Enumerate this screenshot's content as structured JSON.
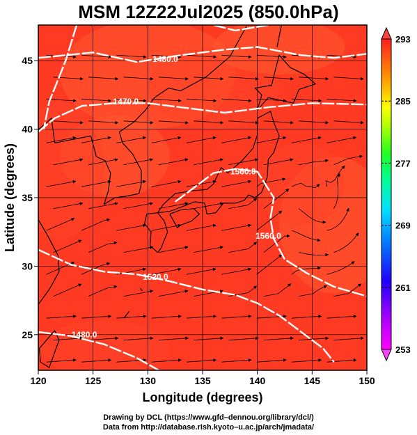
{
  "title": "MSM 12Z22Jul2025 (850.0hPa)",
  "credits": {
    "line1": "Drawing by DCL (https://www.gfd–dennou.org/library/dcl/)",
    "line2": "Data from http://database.rish.kyoto–u.ac.jp/arch/jmadata/"
  },
  "chart_data": {
    "type": "map",
    "xlabel": "Longitude (degrees)",
    "ylabel": "Latitude  (degrees)",
    "xlim": [
      120,
      150
    ],
    "ylim": [
      22.4,
      47.6
    ],
    "x_ticks": [
      120,
      125,
      130,
      135,
      140,
      145,
      150
    ],
    "y_ticks": [
      25,
      30,
      35,
      40,
      45
    ],
    "grid": true,
    "colorbar": {
      "min": 253,
      "max": 293,
      "ticks": [
        253,
        261,
        269,
        277,
        285,
        293
      ],
      "colors": [
        "#ff00ff",
        "#8000ff",
        "#0000ff",
        "#0080ff",
        "#00ffff",
        "#00ff80",
        "#00ff00",
        "#80ff00",
        "#ffff00",
        "#ff8000",
        "#ff0000"
      ]
    },
    "field_colors": {
      "warm": "#ff3020",
      "hot": "#ff5a30",
      "mild": "#ff4428"
    },
    "contours": [
      {
        "label": "1480.0",
        "label_pos": [
          124.2,
          24.8
        ],
        "points": [
          [
            120,
            25.2
          ],
          [
            123,
            24.9
          ],
          [
            126,
            24.3
          ],
          [
            129,
            23.3
          ],
          [
            131,
            22.4
          ]
        ]
      },
      {
        "label": "1520.0",
        "label_pos": [
          130.7,
          29.0
        ],
        "points": [
          [
            120,
            31.2
          ],
          [
            123,
            30.1
          ],
          [
            126,
            29.6
          ],
          [
            129,
            29.4
          ],
          [
            132,
            28.9
          ],
          [
            135,
            28.3
          ],
          [
            138,
            27.9
          ],
          [
            140,
            27.3
          ],
          [
            142,
            26.4
          ],
          [
            144,
            25.2
          ],
          [
            146,
            24.0
          ],
          [
            147,
            23.0
          ]
        ]
      },
      {
        "label": "1560.0",
        "label_pos": [
          138.7,
          36.7
        ],
        "points": [
          [
            123.5,
            47.6
          ],
          [
            122.5,
            45
          ],
          [
            121,
            42
          ],
          [
            120.5,
            40
          ]
        ]
      },
      {
        "label": "1560.0",
        "label_pos": [
          141.0,
          32.0
        ],
        "points": [
          [
            132.5,
            34.7
          ],
          [
            134,
            35.6
          ],
          [
            136,
            36.8
          ],
          [
            138,
            37.1
          ],
          [
            140,
            36.9
          ],
          [
            141.5,
            35.0
          ],
          [
            141.2,
            33.5
          ],
          [
            141.5,
            32
          ],
          [
            142.5,
            30.5
          ],
          [
            144.5,
            29.5
          ],
          [
            147,
            28.5
          ],
          [
            150,
            27.8
          ]
        ]
      },
      {
        "label": "1480.0",
        "label_pos": [
          131.6,
          44.9
        ],
        "points": [
          [
            120,
            45.2
          ],
          [
            125,
            45.6
          ],
          [
            129,
            44.9
          ],
          [
            133,
            45.4
          ],
          [
            137,
            45.8
          ],
          [
            140,
            46.0
          ],
          [
            144,
            45.4
          ],
          [
            147,
            45.2
          ],
          [
            150,
            45.5
          ]
        ]
      },
      {
        "label": "1470.0",
        "label_pos": [
          128.0,
          41.8
        ],
        "points": [
          [
            120,
            39.8
          ],
          [
            121.5,
            40.8
          ],
          [
            124,
            41.7
          ],
          [
            127,
            41.9
          ],
          [
            130,
            41.9
          ],
          [
            134,
            41.5
          ],
          [
            137,
            41.2
          ],
          [
            141,
            41.6
          ],
          [
            145,
            41.9
          ],
          [
            150,
            41.8
          ]
        ]
      },
      {
        "label": "",
        "label_pos": [
          0,
          0
        ],
        "points": [
          [
            136,
            47.6
          ],
          [
            138,
            47.2
          ],
          [
            141,
            47.6
          ]
        ]
      }
    ],
    "coastlines": [
      [
        [
          126,
          34.5
        ],
        [
          127,
          35.0
        ],
        [
          128,
          35.1
        ],
        [
          129.2,
          35.3
        ],
        [
          129.4,
          36.0
        ],
        [
          129.4,
          37.0
        ],
        [
          128.6,
          38.2
        ],
        [
          127.7,
          39.0
        ],
        [
          127.4,
          39.8
        ],
        [
          128.7,
          40.5
        ],
        [
          129.8,
          41.4
        ],
        [
          130.6,
          42.3
        ]
      ],
      [
        [
          126,
          34.5
        ],
        [
          126.4,
          35.5
        ],
        [
          126.6,
          36.8
        ],
        [
          126.1,
          37.7
        ],
        [
          125.3,
          38.0
        ],
        [
          124.8,
          39.5
        ],
        [
          121.5,
          39.0
        ],
        [
          121.2,
          40.8
        ],
        [
          119.5,
          39.6
        ]
      ],
      [
        [
          130.6,
          42.3
        ],
        [
          131.9,
          43.0
        ],
        [
          133,
          42.8
        ],
        [
          135.3,
          43.8
        ],
        [
          137.5,
          45.3
        ],
        [
          139.0,
          47.5
        ]
      ],
      [
        [
          130.9,
          31.0
        ],
        [
          130.2,
          31.5
        ],
        [
          130.3,
          32.5
        ],
        [
          129.7,
          33.1
        ],
        [
          129.9,
          33.8
        ],
        [
          130.9,
          33.9
        ],
        [
          131.5,
          33.3
        ],
        [
          131.8,
          32.5
        ],
        [
          131.2,
          31.3
        ],
        [
          130.9,
          31.0
        ]
      ],
      [
        [
          130.9,
          33.9
        ],
        [
          132.0,
          34.0
        ],
        [
          133.0,
          34.3
        ],
        [
          134.3,
          34.7
        ],
        [
          135.2,
          34.6
        ],
        [
          135.4,
          33.8
        ],
        [
          136.2,
          33.9
        ],
        [
          136.9,
          34.6
        ],
        [
          138.0,
          34.6
        ],
        [
          138.8,
          34.8
        ],
        [
          139.2,
          35.2
        ],
        [
          139.8,
          35.0
        ],
        [
          140.4,
          35.4
        ],
        [
          140.9,
          36.5
        ],
        [
          141.0,
          37.8
        ],
        [
          141.5,
          38.3
        ],
        [
          142.0,
          39.5
        ],
        [
          141.5,
          40.5
        ],
        [
          141.2,
          41.3
        ],
        [
          140.0,
          40.8
        ],
        [
          140.0,
          39.6
        ],
        [
          139.6,
          38.6
        ],
        [
          138.6,
          37.7
        ],
        [
          137.3,
          36.8
        ],
        [
          136.7,
          37.2
        ],
        [
          136.0,
          36.0
        ],
        [
          135.4,
          35.6
        ],
        [
          134.0,
          35.5
        ],
        [
          132.5,
          35.3
        ],
        [
          131.4,
          34.5
        ],
        [
          130.9,
          33.9
        ]
      ],
      [
        [
          132.0,
          33.8
        ],
        [
          132.7,
          32.8
        ],
        [
          133.0,
          33.0
        ],
        [
          134.0,
          33.3
        ],
        [
          134.7,
          33.8
        ],
        [
          134.2,
          34.2
        ],
        [
          133.0,
          34.1
        ],
        [
          132.0,
          33.8
        ]
      ],
      [
        [
          140.0,
          41.4
        ],
        [
          140.4,
          42.5
        ],
        [
          139.8,
          43.0
        ],
        [
          141.3,
          43.2
        ],
        [
          141.7,
          44.5
        ],
        [
          142.0,
          45.4
        ],
        [
          143.0,
          44.5
        ],
        [
          144.3,
          44.0
        ],
        [
          145.3,
          43.3
        ],
        [
          143.8,
          42.9
        ],
        [
          143.3,
          41.9
        ],
        [
          141.0,
          42.3
        ],
        [
          140.0,
          41.4
        ]
      ],
      [
        [
          141.8,
          46.0
        ],
        [
          142.2,
          47.6
        ]
      ],
      [
        [
          129.5,
          28.2
        ],
        [
          129.3,
          28.4
        ]
      ],
      [
        [
          127.8,
          26.2
        ],
        [
          128.3,
          26.7
        ]
      ],
      [
        [
          121.5,
          25.3
        ],
        [
          121.9,
          24.6
        ],
        [
          121.0,
          22.6
        ],
        [
          120.2,
          23.0
        ],
        [
          120.1,
          24.0
        ],
        [
          121.5,
          25.3
        ]
      ],
      [
        [
          120,
          27.2
        ],
        [
          121,
          28.3
        ],
        [
          121.9,
          29.6
        ],
        [
          121.8,
          30.8
        ],
        [
          120.8,
          32.3
        ],
        [
          120,
          33.4
        ]
      ]
    ]
  }
}
